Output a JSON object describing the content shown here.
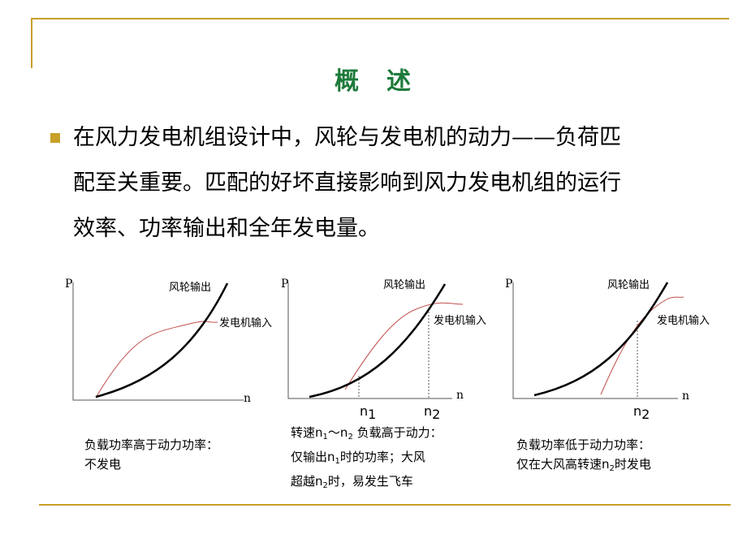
{
  "slide": {
    "title": "概　述",
    "bullet_lines": [
      "在风力发电机组设计中，风轮与发电机的动力——负荷匹",
      "配至关重要。匹配的好坏直接影响到风力发电机组的运行",
      "效率、功率输出和全年发电量。"
    ],
    "colors": {
      "accent": "#c8a02a",
      "title": "#1d7a3a",
      "rotor_curve": "#000000",
      "generator_curve": "#c0504d"
    }
  },
  "charts": {
    "y_axis_label": "P",
    "x_axis_label": "n",
    "rotor_label": "风轮输出",
    "generator_label": "发电机输入",
    "marker_n1_base": "n",
    "marker_n1_sub": "1",
    "marker_n2_base": "n",
    "marker_n2_sub": "2"
  },
  "captions": {
    "c1": {
      "line1": "负载功率高于动力功率：",
      "line2": "不发电"
    },
    "c2": {
      "l1_a": "转速",
      "l1_n1": "n",
      "l1_s1": "1",
      "l1_tilde": "～",
      "l1_n2": "n",
      "l1_s2": "2",
      "l1_b": " 负载高于动力：",
      "l2_a": "仅输出",
      "l2_n": "n",
      "l2_s": "1",
      "l2_b": "时的功率；大风",
      "l3_a": "超越",
      "l3_n": "n",
      "l3_s": "2",
      "l3_b": "时，易发生飞车"
    },
    "c3": {
      "line1": "负载功率低于动力功率：",
      "l2_a": "仅在大风高转速",
      "l2_n": "n",
      "l2_s": "2",
      "l2_b": "时发电"
    }
  },
  "chart_data": [
    {
      "type": "line",
      "title": "",
      "series": [
        {
          "name": "风轮输出"
        },
        {
          "name": "发电机输入"
        }
      ],
      "xlabel": "n",
      "ylabel": "P"
    },
    {
      "type": "line",
      "title": "",
      "series": [
        {
          "name": "风轮输出"
        },
        {
          "name": "发电机输入"
        }
      ],
      "xlabel": "n",
      "ylabel": "P",
      "x_markers": [
        "n1",
        "n2"
      ]
    },
    {
      "type": "line",
      "title": "",
      "series": [
        {
          "name": "风轮输出"
        },
        {
          "name": "发电机输入"
        }
      ],
      "xlabel": "n",
      "ylabel": "P",
      "x_markers": [
        "n2"
      ]
    }
  ]
}
